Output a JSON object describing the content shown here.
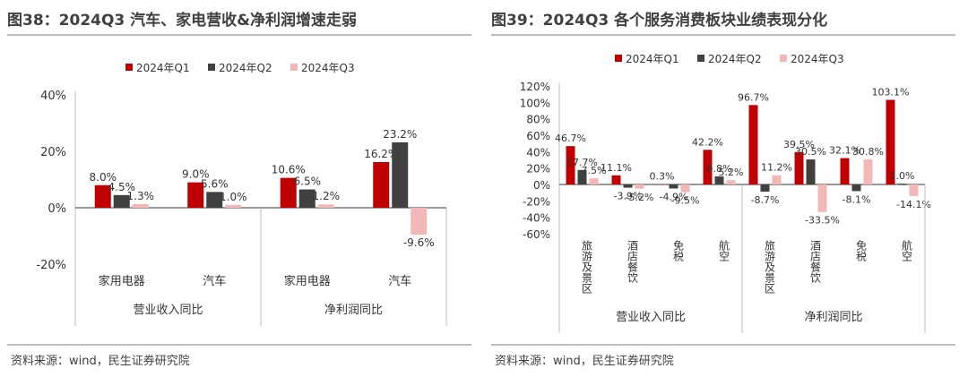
{
  "colors": {
    "q1": "#c00000",
    "q2": "#404040",
    "q3": "#f2b8b8"
  },
  "chart_data": [
    {
      "type": "bar",
      "title": "图38：2024Q3 汽车、家电营收&净利润增速走弱",
      "source": "资料来源：wind，民生证券研究院",
      "legend": [
        "2024年Q1",
        "2024年Q2",
        "2024年Q3"
      ],
      "legend_position": "top",
      "categories": [
        "家用电器",
        "汽车",
        "家用电器",
        "汽车"
      ],
      "groups": [
        {
          "label": "营业收入同比",
          "span": 2
        },
        {
          "label": "净利润同比",
          "span": 2
        }
      ],
      "series": [
        {
          "name": "2024年Q1",
          "values": [
            8.0,
            9.0,
            10.6,
            16.2
          ],
          "labels": [
            "8.0%",
            "9.0%",
            "10.6%",
            "16.2%"
          ]
        },
        {
          "name": "2024年Q2",
          "values": [
            4.5,
            5.6,
            6.5,
            23.2
          ],
          "labels": [
            "4.5%",
            "5.6%",
            "6.5%",
            "23.2%"
          ]
        },
        {
          "name": "2024年Q3",
          "values": [
            1.3,
            1.0,
            1.2,
            -9.6
          ],
          "labels": [
            "1.3%",
            "1.0%",
            "1.2%",
            "-9.6%"
          ]
        }
      ],
      "ylim": [
        -20,
        40
      ],
      "yticks": [
        -20,
        0,
        20,
        40
      ],
      "ytick_labels": [
        "-20%",
        "0%",
        "20%",
        "40%"
      ],
      "category_label_orientation": "horizontal"
    },
    {
      "type": "bar",
      "title": "图39：2024Q3 各个服务消费板块业绩表现分化",
      "source": "资料来源：wind，民生证券研究院",
      "legend": [
        "2024年Q1",
        "2024年Q2",
        "2024年Q3"
      ],
      "legend_position": "top",
      "categories": [
        "旅游及景区",
        "酒店餐饮",
        "免税",
        "航空",
        "旅游及景区",
        "酒店餐饮",
        "免税",
        "航空"
      ],
      "groups": [
        {
          "label": "营业收入同比",
          "span": 4
        },
        {
          "label": "净利润同比",
          "span": 4
        }
      ],
      "series": [
        {
          "name": "2024年Q1",
          "values": [
            46.7,
            11.1,
            0.3,
            42.2,
            96.7,
            39.5,
            32.1,
            103.1
          ],
          "labels": [
            "46.7%",
            "11.1%",
            "0.3%",
            "42.2%",
            "96.7%",
            "39.5%",
            "32.1%",
            "103.1%"
          ]
        },
        {
          "name": "2024年Q2",
          "values": [
            17.7,
            -3.9,
            -4.9,
            9.8,
            -8.7,
            30.5,
            -8.1,
            1.0
          ],
          "labels": [
            "17.7%",
            "-3.9%",
            "-4.9%",
            "9.8%",
            "-8.7%",
            "30.5%",
            "-8.1%",
            "1.0%"
          ]
        },
        {
          "name": "2024年Q3",
          "values": [
            7.5,
            -5.2,
            -9.5,
            5.2,
            11.2,
            -33.5,
            30.8,
            -14.1
          ],
          "labels": [
            "7.5%",
            "-5.2%",
            "-9.5%",
            "5.2%",
            "11.2%",
            "-33.5%",
            "30.8%",
            "-14.1%"
          ]
        }
      ],
      "ylim": [
        -60,
        120
      ],
      "yticks": [
        -60,
        -40,
        -20,
        0,
        20,
        40,
        60,
        80,
        100,
        120
      ],
      "ytick_labels": [
        "-60%",
        "-40%",
        "-20%",
        "0%",
        "20%",
        "40%",
        "60%",
        "80%",
        "100%",
        "120%"
      ],
      "category_label_orientation": "vertical"
    }
  ]
}
